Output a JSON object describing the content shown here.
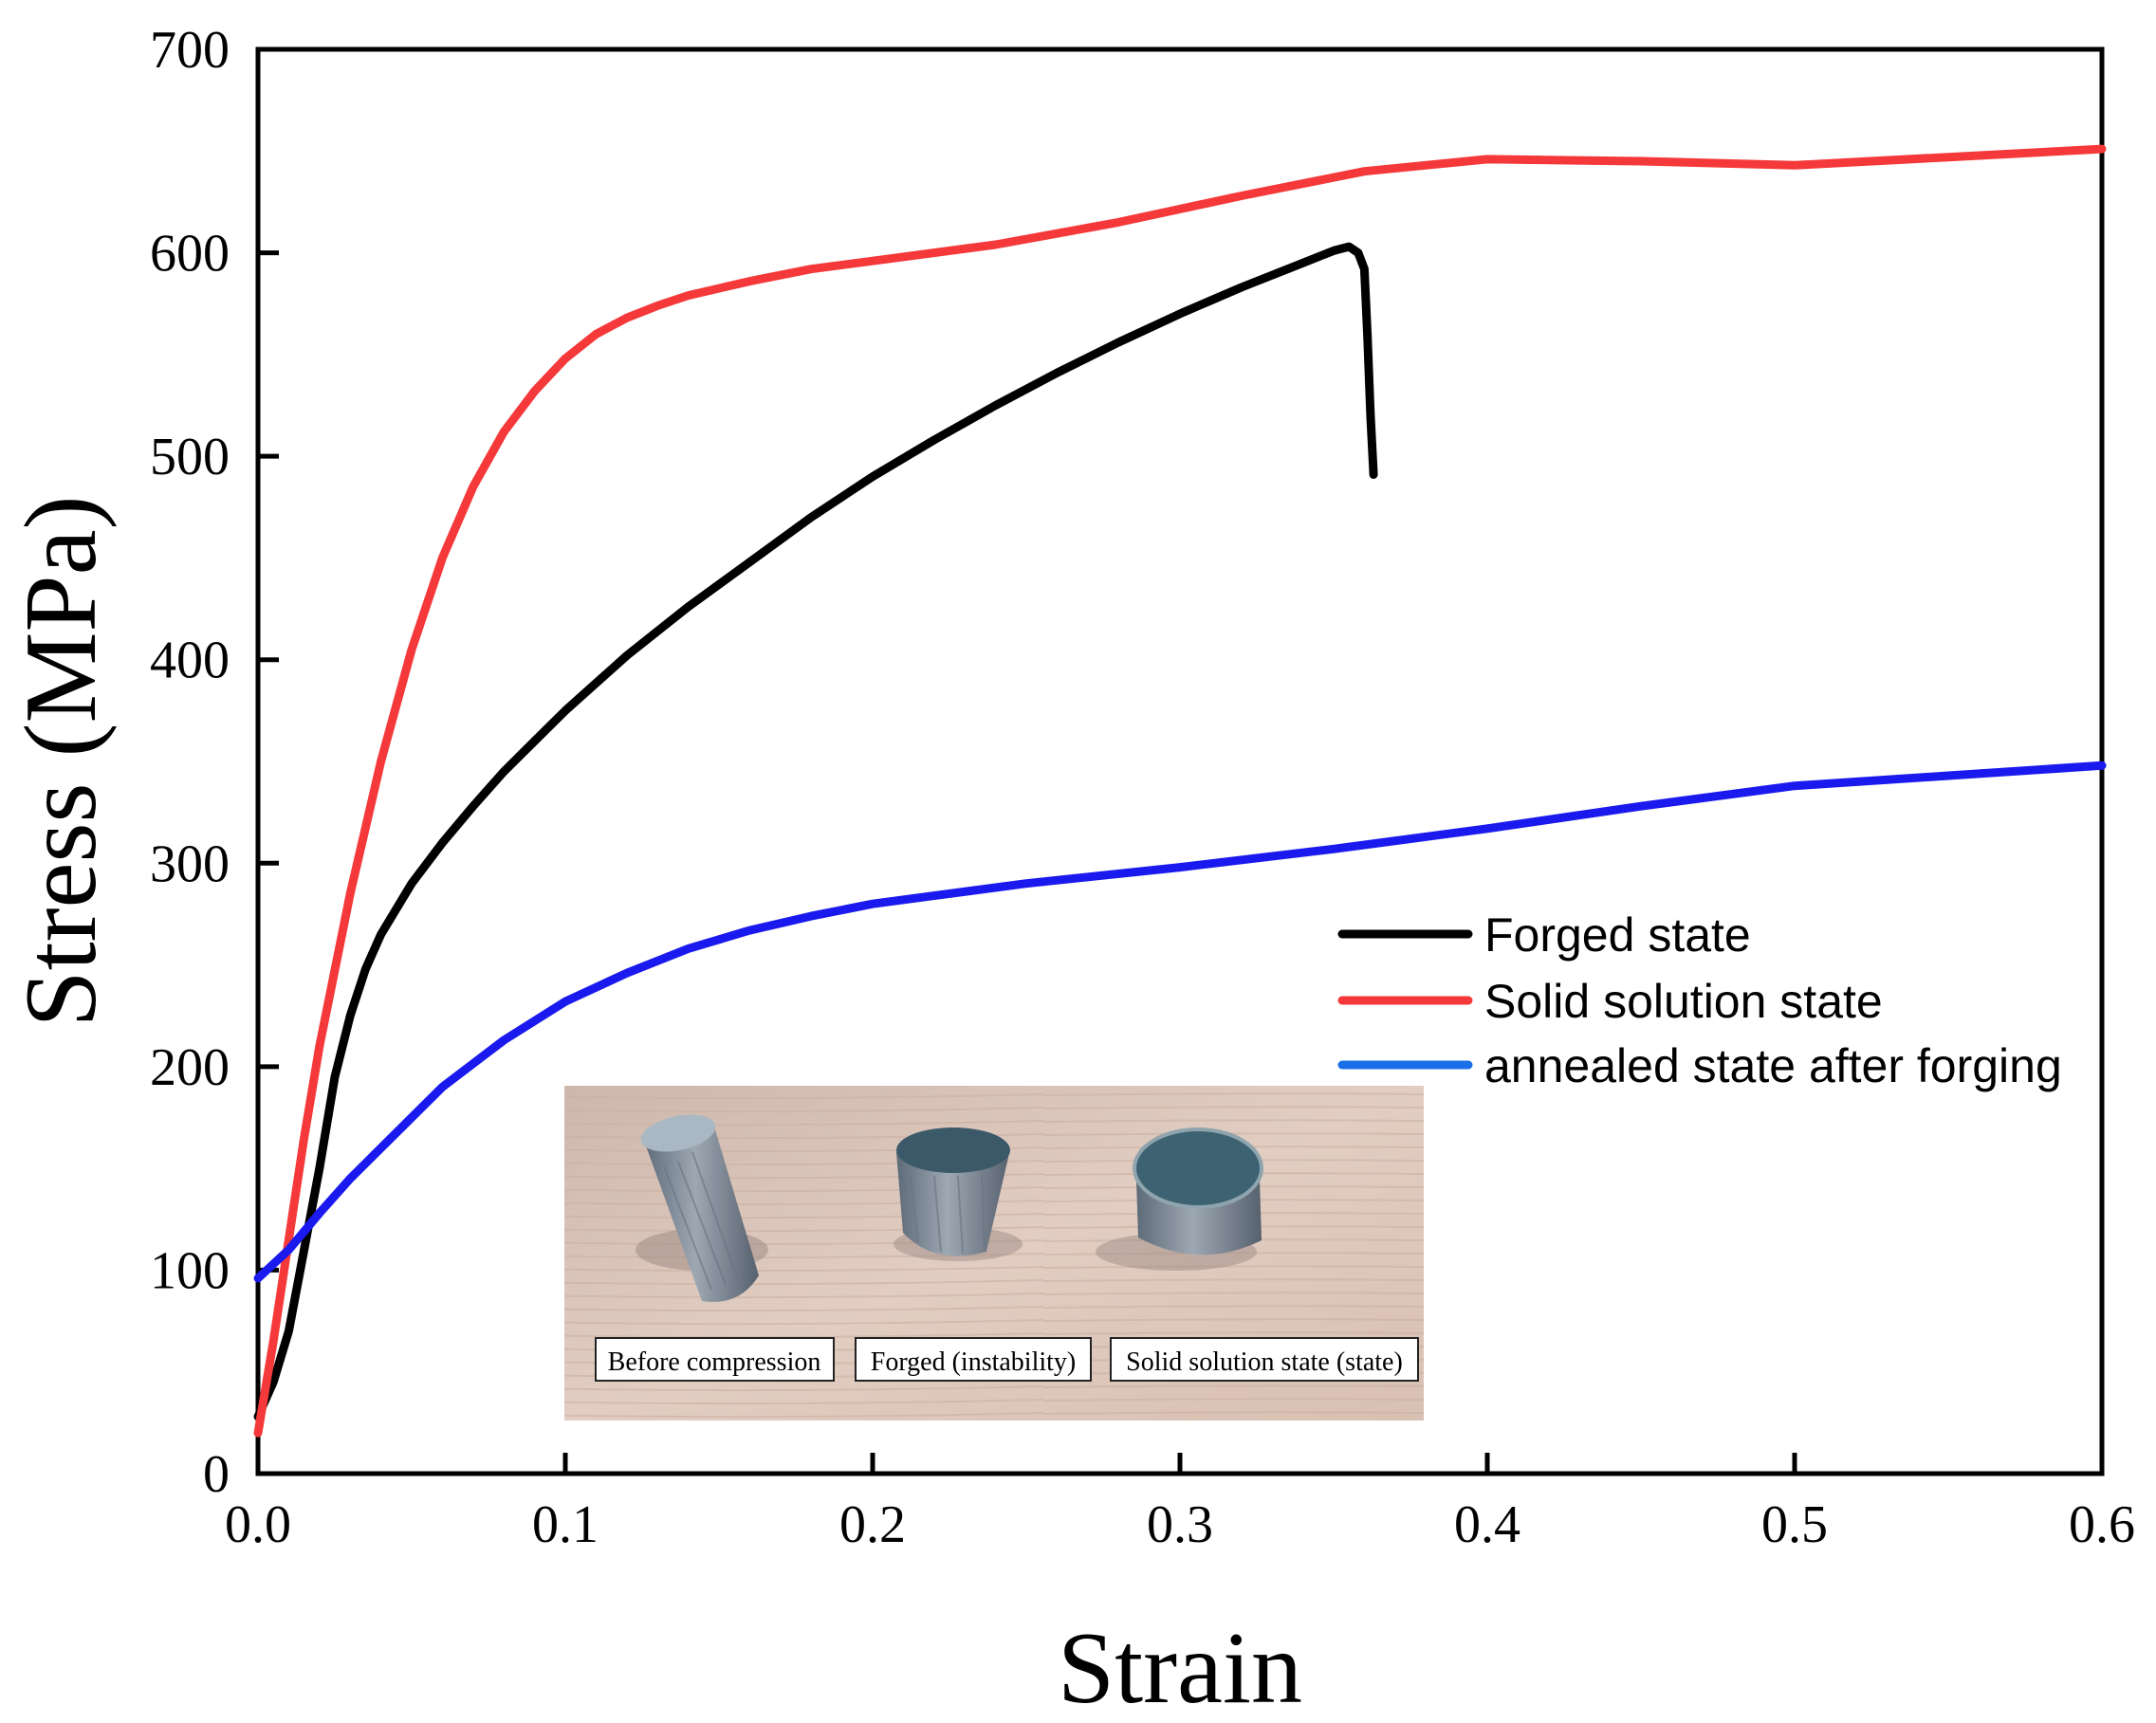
{
  "chart_data": {
    "type": "line",
    "title": "",
    "xlabel": "Strain",
    "ylabel": "Stress (MPa)",
    "xlim": [
      0.0,
      0.6
    ],
    "ylim": [
      0,
      700
    ],
    "x_ticks": [
      "0.0",
      "0.1",
      "0.2",
      "0.3",
      "0.4",
      "0.5",
      "0.6"
    ],
    "y_ticks": [
      "0",
      "100",
      "200",
      "300",
      "400",
      "500",
      "600",
      "700"
    ],
    "grid": false,
    "legend_position": "right",
    "series": [
      {
        "name": "Forged state",
        "color": "#000000",
        "points": [
          [
            0.0,
            28
          ],
          [
            0.005,
            45
          ],
          [
            0.01,
            70
          ],
          [
            0.015,
            110
          ],
          [
            0.02,
            150
          ],
          [
            0.025,
            195
          ],
          [
            0.03,
            225
          ],
          [
            0.035,
            248
          ],
          [
            0.04,
            265
          ],
          [
            0.05,
            290
          ],
          [
            0.06,
            310
          ],
          [
            0.07,
            328
          ],
          [
            0.08,
            345
          ],
          [
            0.09,
            360
          ],
          [
            0.1,
            375
          ],
          [
            0.12,
            402
          ],
          [
            0.14,
            426
          ],
          [
            0.16,
            448
          ],
          [
            0.18,
            470
          ],
          [
            0.2,
            490
          ],
          [
            0.22,
            508
          ],
          [
            0.24,
            525
          ],
          [
            0.26,
            541
          ],
          [
            0.28,
            556
          ],
          [
            0.3,
            570
          ],
          [
            0.32,
            583
          ],
          [
            0.34,
            595
          ],
          [
            0.35,
            601
          ],
          [
            0.355,
            603
          ],
          [
            0.358,
            600
          ],
          [
            0.36,
            592
          ],
          [
            0.361,
            560
          ],
          [
            0.362,
            520
          ],
          [
            0.363,
            491
          ]
        ]
      },
      {
        "name": "Solid solution state",
        "color": "#f5393a",
        "points": [
          [
            0.0,
            20
          ],
          [
            0.005,
            65
          ],
          [
            0.01,
            115
          ],
          [
            0.015,
            165
          ],
          [
            0.02,
            210
          ],
          [
            0.03,
            285
          ],
          [
            0.04,
            350
          ],
          [
            0.05,
            405
          ],
          [
            0.06,
            450
          ],
          [
            0.07,
            485
          ],
          [
            0.08,
            512
          ],
          [
            0.09,
            532
          ],
          [
            0.1,
            548
          ],
          [
            0.11,
            560
          ],
          [
            0.12,
            568
          ],
          [
            0.13,
            574
          ],
          [
            0.14,
            579
          ],
          [
            0.16,
            586
          ],
          [
            0.18,
            592
          ],
          [
            0.2,
            596
          ],
          [
            0.24,
            604
          ],
          [
            0.28,
            615
          ],
          [
            0.32,
            628
          ],
          [
            0.36,
            640
          ],
          [
            0.4,
            646
          ],
          [
            0.45,
            645
          ],
          [
            0.5,
            643
          ],
          [
            0.55,
            647
          ],
          [
            0.6,
            651
          ]
        ]
      },
      {
        "name": "annealed state after forging",
        "color": "#1a1aee",
        "points": [
          [
            0.0,
            96
          ],
          [
            0.01,
            110
          ],
          [
            0.02,
            128
          ],
          [
            0.03,
            145
          ],
          [
            0.04,
            160
          ],
          [
            0.05,
            175
          ],
          [
            0.06,
            190
          ],
          [
            0.08,
            213
          ],
          [
            0.1,
            232
          ],
          [
            0.12,
            246
          ],
          [
            0.14,
            258
          ],
          [
            0.16,
            267
          ],
          [
            0.18,
            274
          ],
          [
            0.2,
            280
          ],
          [
            0.22,
            284
          ],
          [
            0.25,
            290
          ],
          [
            0.3,
            298
          ],
          [
            0.35,
            307
          ],
          [
            0.4,
            317
          ],
          [
            0.45,
            328
          ],
          [
            0.5,
            338
          ],
          [
            0.55,
            343
          ],
          [
            0.6,
            348
          ]
        ]
      }
    ],
    "inset": {
      "description_labels": [
        "Before compression",
        "Forged (instability)",
        "Solid solution state (state)"
      ]
    }
  },
  "colors": {
    "forged": "#000000",
    "solid": "#f5393a",
    "annealed_line": "#1a1aee",
    "annealed_legend": "#1a6fe8",
    "inset_bg": "#d9c3ba"
  }
}
